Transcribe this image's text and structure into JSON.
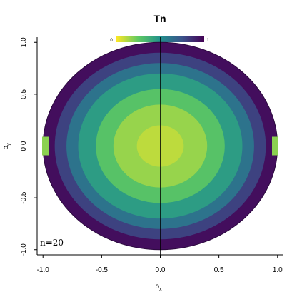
{
  "chart_data": {
    "type": "heatmap",
    "title": "Tn",
    "xlabel": "ρ",
    "xlabel_sub": "x",
    "ylabel": "ρ",
    "ylabel_sub": "y",
    "xlim": [
      -1.05,
      1.05
    ],
    "ylim": [
      -1.05,
      1.05
    ],
    "x_ticks": [
      -1.0,
      -0.5,
      0.0,
      0.5,
      1.0
    ],
    "x_tick_labels": [
      "-1.0",
      "-0.5",
      "0.0",
      "0.5",
      "1.0"
    ],
    "y_ticks": [
      -1.0,
      -0.5,
      0.0,
      0.5,
      1.0
    ],
    "y_tick_labels": [
      "-1.0",
      "-0.5",
      "0.0",
      "0.5",
      "1.0"
    ],
    "colorbar": {
      "min_label": "0",
      "max_label": "1",
      "range": [
        0,
        1
      ],
      "colormap": "viridis (reversed: 0 = yellow, 1 = purple)",
      "placement": "top-center"
    },
    "annotation": "n=20",
    "rings": [
      {
        "r_inner": 0.0,
        "r_outer": 0.2,
        "value": 0.1
      },
      {
        "r_inner": 0.2,
        "r_outer": 0.4,
        "value": 0.16
      },
      {
        "r_inner": 0.4,
        "r_outer": 0.55,
        "value": 0.28
      },
      {
        "r_inner": 0.55,
        "r_outer": 0.7,
        "value": 0.45
      },
      {
        "r_inner": 0.7,
        "r_outer": 0.8,
        "value": 0.62
      },
      {
        "r_inner": 0.8,
        "r_outer": 0.9,
        "value": 0.8
      },
      {
        "r_inner": 0.9,
        "r_outer": 1.0,
        "value": 0.96
      }
    ],
    "edge_cells": [
      {
        "x": -0.98,
        "y": 0.0,
        "value": 0.18
      },
      {
        "x": 0.98,
        "y": 0.0,
        "value": 0.18
      }
    ],
    "reference_lines": {
      "horizontal_y": 0.0,
      "vertical_x": 0.0
    },
    "grid": false
  }
}
